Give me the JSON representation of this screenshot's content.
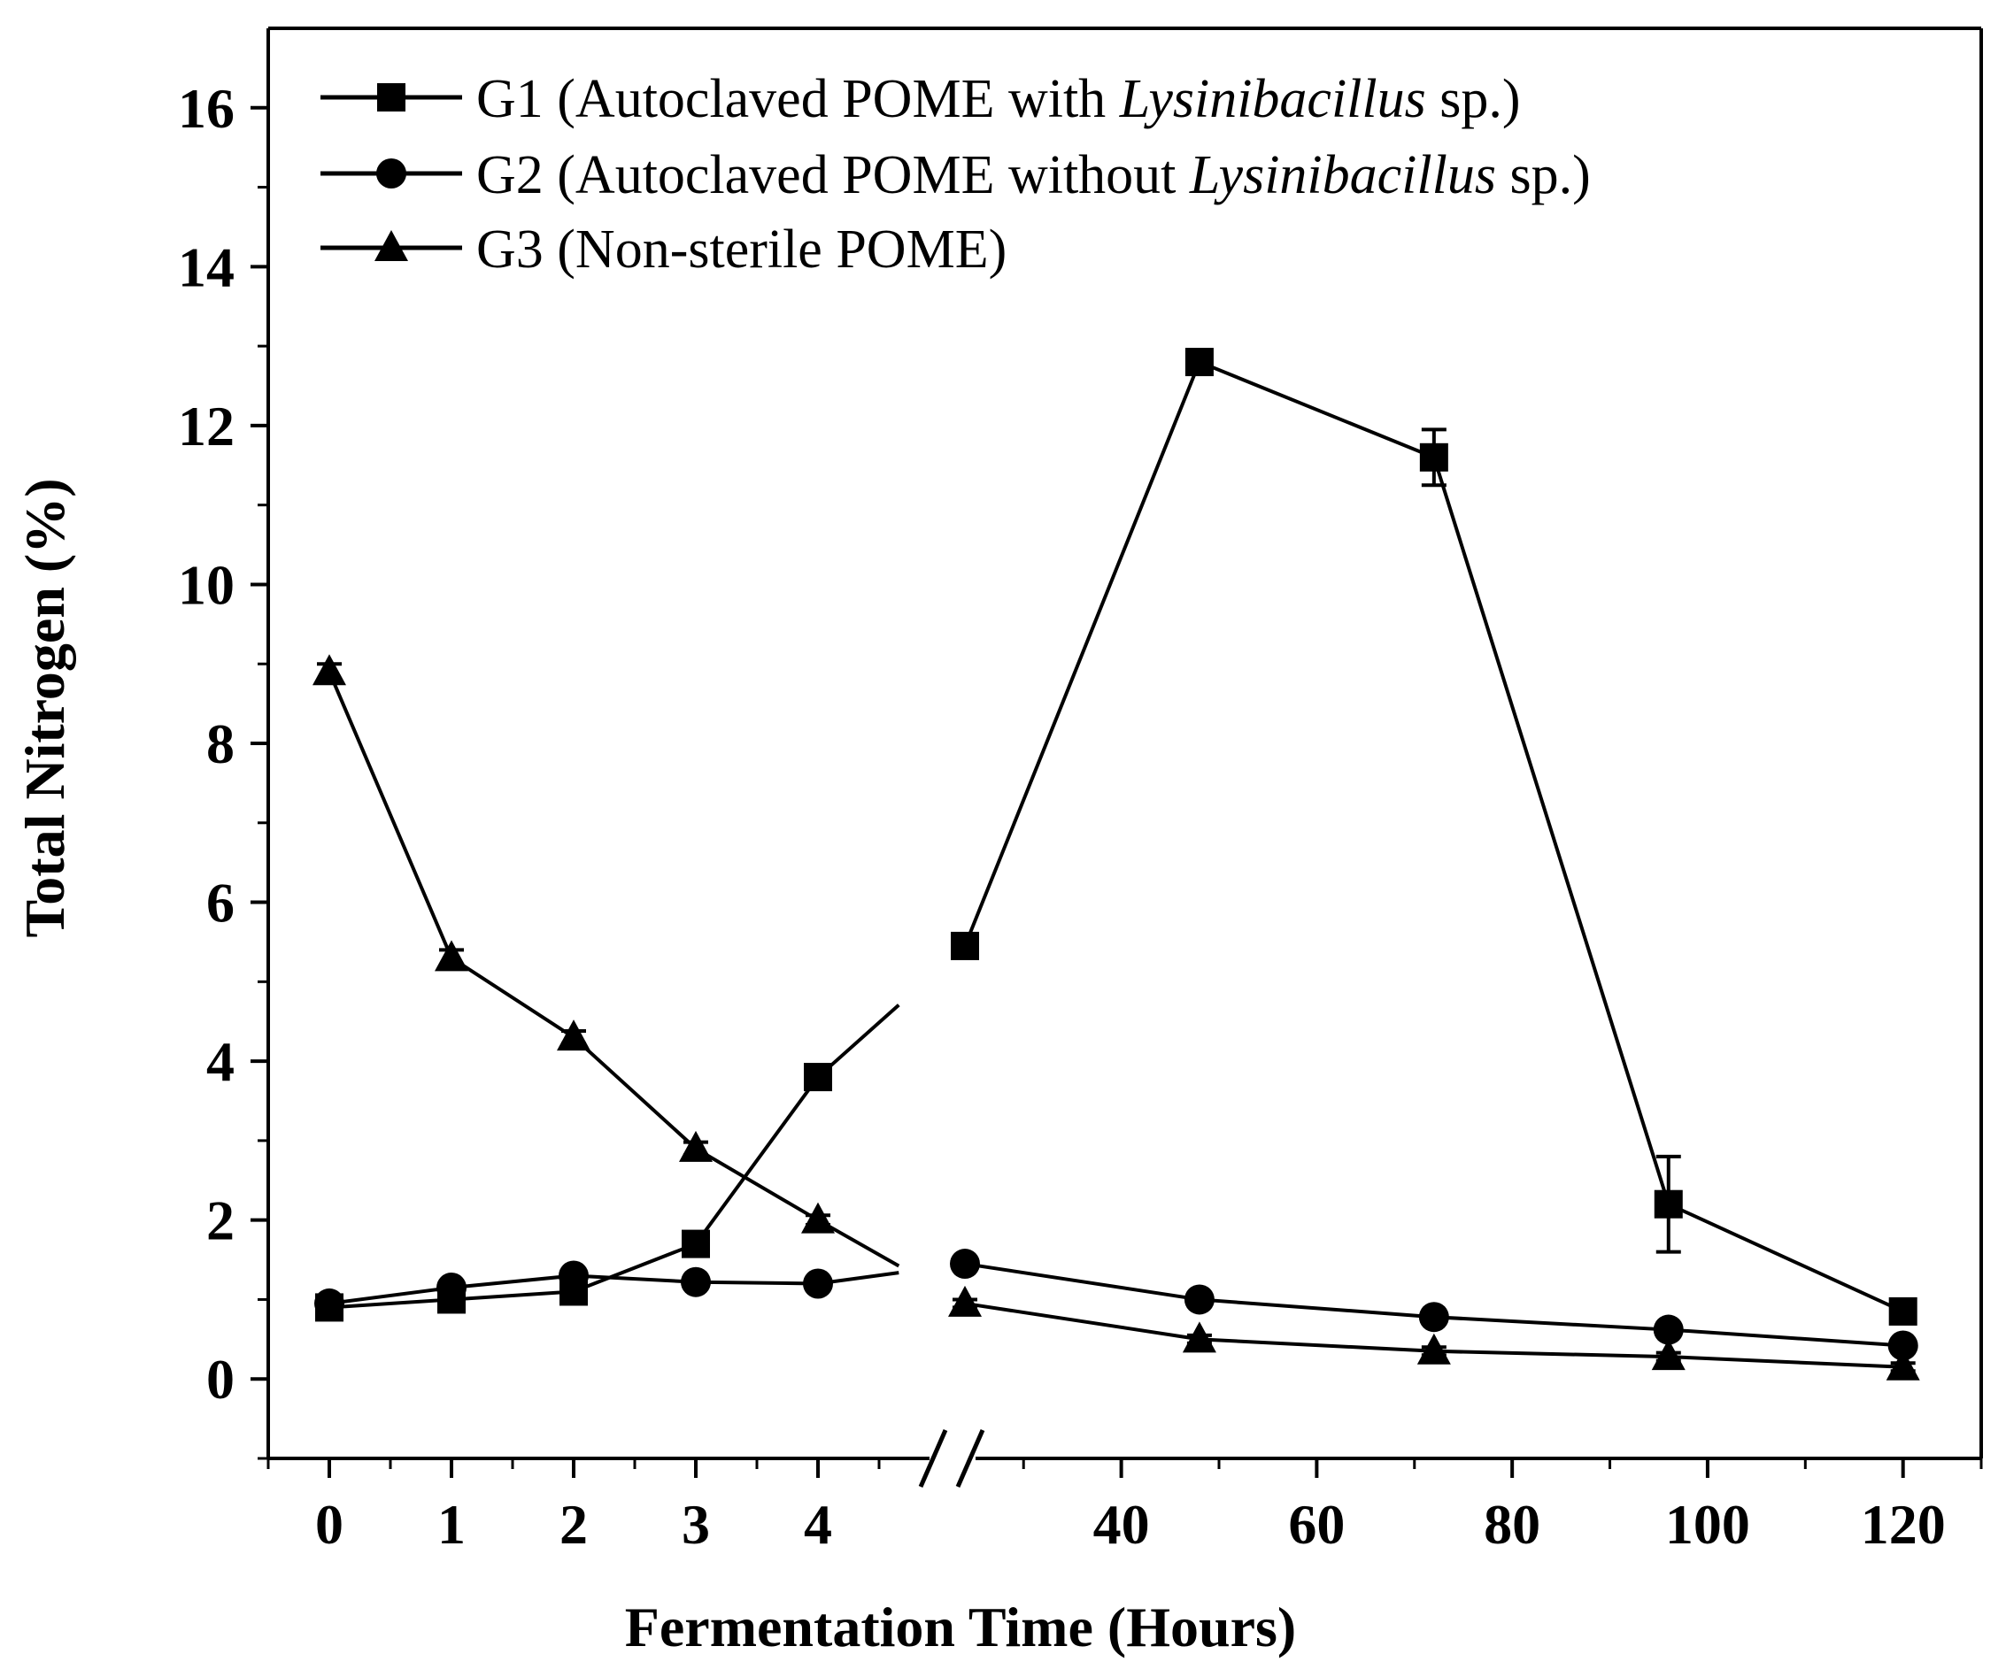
{
  "chart_data": {
    "type": "line",
    "title": "",
    "xlabel": "Fermentation Time (Hours)",
    "ylabel": "Total Nitrogen (%)",
    "ylim": [
      -1,
      17
    ],
    "y_ticks": [
      0,
      2,
      4,
      6,
      8,
      10,
      12,
      14,
      16
    ],
    "x_break": true,
    "x_segments": [
      {
        "range": [
          -0.5,
          5
        ],
        "ticks": [
          0,
          1,
          2,
          3,
          4
        ]
      },
      {
        "range": [
          24,
          128
        ],
        "ticks": [
          40,
          60,
          80,
          100,
          120
        ]
      }
    ],
    "x_tick_labels": [
      "0",
      "1",
      "2",
      "3",
      "4",
      "40",
      "60",
      "80",
      "100",
      "120"
    ],
    "legend_position": "top-left",
    "series": [
      {
        "name": "G1 (Autoclaved POME with Lysinibacillus sp.)",
        "legend_parts": [
          "G1 (Autoclaved POME with ",
          "Lysinibacillus",
          " sp.)"
        ],
        "marker": "square",
        "x": [
          0,
          1,
          2,
          3,
          4,
          24,
          48,
          72,
          96,
          120
        ],
        "values": [
          0.9,
          1.0,
          1.1,
          1.7,
          3.8,
          5.45,
          12.8,
          11.6,
          2.2,
          0.85
        ],
        "errors": [
          0.05,
          0.05,
          0.05,
          0.08,
          0.1,
          0.12,
          0.1,
          0.35,
          0.6,
          0.12
        ]
      },
      {
        "name": "G2 (Autoclaved POME without Lysinibacillus sp.)",
        "legend_parts": [
          "G2 (Autoclaved POME without ",
          "Lysinibacillus",
          " sp.)"
        ],
        "marker": "circle",
        "x": [
          0,
          1,
          2,
          3,
          4,
          24,
          48,
          72,
          96,
          120
        ],
        "values": [
          0.95,
          1.15,
          1.3,
          1.22,
          1.2,
          1.45,
          1.0,
          0.78,
          0.62,
          0.42
        ],
        "errors": [
          0.05,
          0.05,
          0.05,
          0.05,
          0.05,
          0.06,
          0.05,
          0.05,
          0.05,
          0.05
        ]
      },
      {
        "name": "G3 (Non-sterile POME)",
        "legend_parts": [
          "G3 (Non-sterile POME)"
        ],
        "marker": "triangle",
        "x": [
          0,
          1,
          2,
          3,
          4,
          24,
          48,
          72,
          96,
          120
        ],
        "values": [
          8.9,
          5.3,
          4.3,
          2.9,
          2.0,
          0.95,
          0.5,
          0.35,
          0.28,
          0.15
        ],
        "errors": [
          0.1,
          0.1,
          0.08,
          0.08,
          0.06,
          0.05,
          0.05,
          0.05,
          0.05,
          0.05
        ]
      }
    ]
  }
}
